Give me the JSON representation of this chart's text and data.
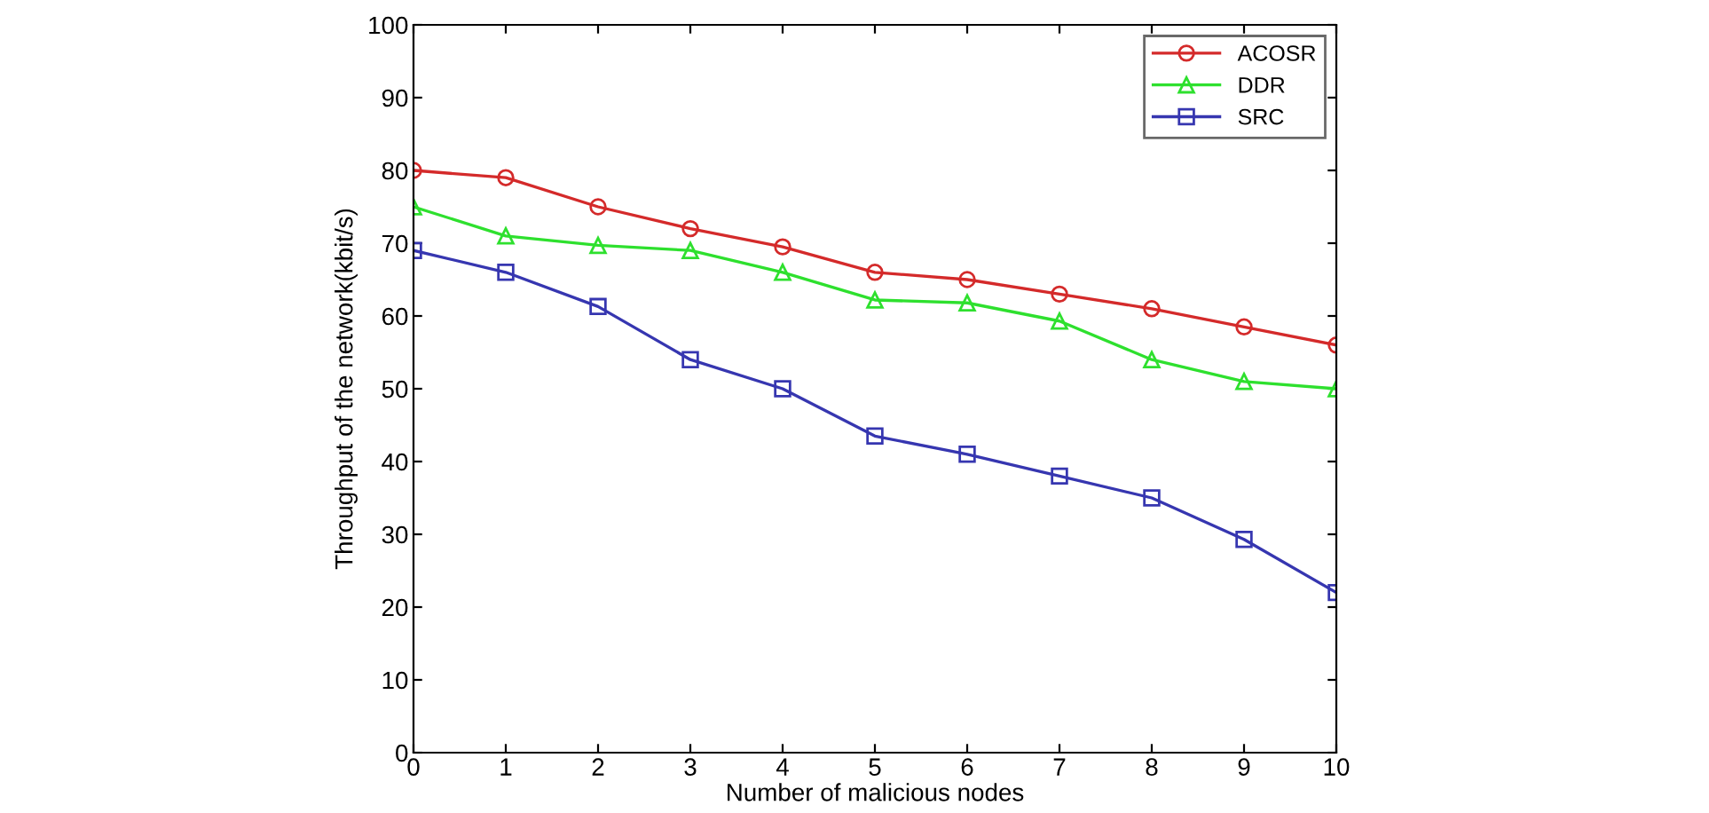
{
  "chart_data": {
    "type": "line",
    "xlabel": "Number of malicious nodes",
    "ylabel": "Throughput of the network(kbit/s)",
    "x": [
      0,
      1,
      2,
      3,
      4,
      5,
      6,
      7,
      8,
      9,
      10
    ],
    "series": [
      {
        "name": "ACOSR",
        "color": "#d42a2a",
        "marker": "circle",
        "values": [
          80,
          79,
          75,
          72,
          69.5,
          66,
          65,
          63,
          61,
          58.5,
          56
        ]
      },
      {
        "name": "DDR",
        "color": "#2ee02e",
        "marker": "triangle",
        "values": [
          75,
          71,
          69.7,
          69,
          66,
          62.2,
          61.8,
          59.3,
          54,
          51,
          50
        ]
      },
      {
        "name": "SRC",
        "color": "#3636b0",
        "marker": "square",
        "values": [
          69,
          66,
          61.3,
          54,
          50,
          43.5,
          41,
          38,
          35,
          29.3,
          22
        ]
      }
    ],
    "xlim": [
      0,
      10
    ],
    "xticks": [
      0,
      1,
      2,
      3,
      4,
      5,
      6,
      7,
      8,
      9,
      10
    ],
    "ylim": [
      0,
      100
    ],
    "yticks": [
      0,
      10,
      20,
      30,
      40,
      50,
      60,
      70,
      80,
      90,
      100
    ],
    "grid": false,
    "legend": "top right",
    "line_style": "solid"
  }
}
